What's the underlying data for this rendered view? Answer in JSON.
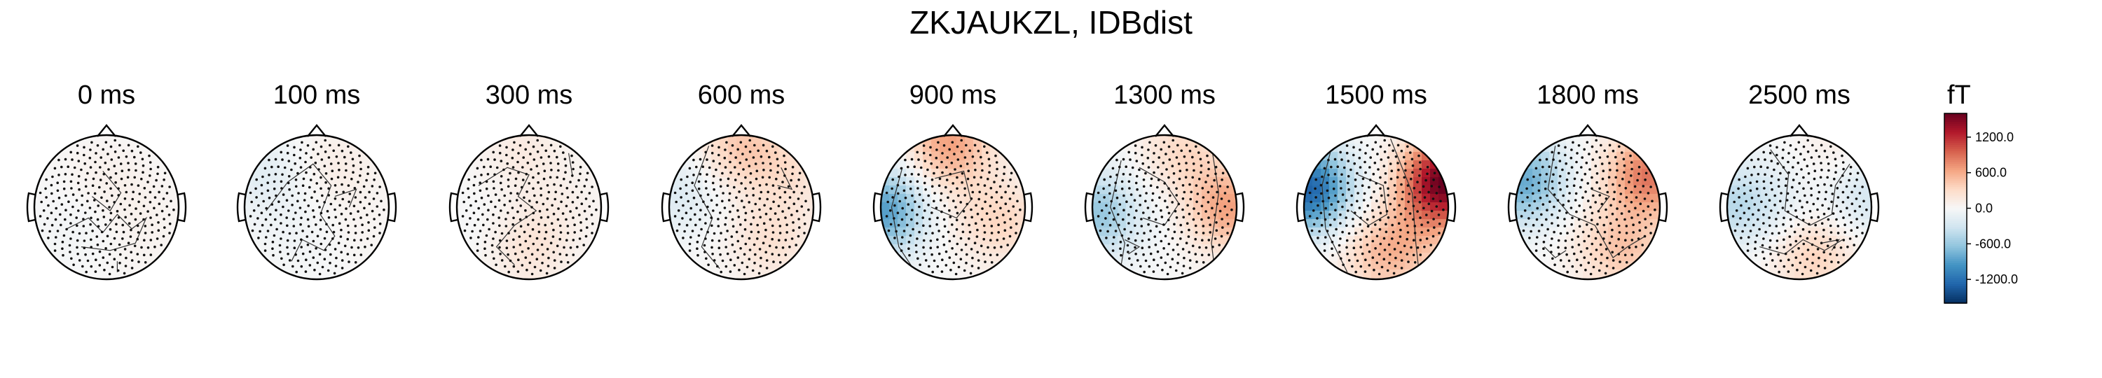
{
  "figure": {
    "title": "ZKJAUKZL, IDBdist"
  },
  "chart_data": {
    "type": "heatmap",
    "title": "ZKJAUKZL, IDBdist",
    "panels": [
      {
        "label": "0 ms",
        "sources": [
          [
            -0.05,
            -0.35,
            80
          ],
          [
            0.05,
            0.25,
            -50
          ],
          [
            0.45,
            0.1,
            60
          ],
          [
            -0.5,
            0.2,
            -40
          ],
          [
            0.3,
            0.55,
            40
          ]
        ],
        "contours": [
          [
            [
              -0.55,
              0.3
            ],
            [
              -0.25,
              0.15
            ],
            [
              -0.05,
              0.35
            ],
            [
              0.15,
              0.1
            ],
            [
              0.35,
              0.3
            ],
            [
              0.55,
              0.15
            ],
            [
              0.4,
              0.5
            ],
            [
              0.05,
              0.6
            ],
            [
              -0.35,
              0.55
            ]
          ],
          [
            [
              -0.05,
              -0.5
            ],
            [
              0.2,
              -0.2
            ],
            [
              0.05,
              0.05
            ],
            [
              -0.2,
              -0.15
            ]
          ],
          [
            [
              0.15,
              0.75
            ],
            [
              0.15,
              0.9
            ]
          ]
        ]
      },
      {
        "label": "100 ms",
        "sources": [
          [
            -0.75,
            -0.45,
            -170
          ],
          [
            0.3,
            -0.6,
            110
          ],
          [
            0.5,
            0.3,
            40
          ],
          [
            -0.2,
            0.4,
            -60
          ]
        ],
        "contours": [
          [
            [
              -0.7,
              0.05
            ],
            [
              -0.4,
              -0.35
            ],
            [
              -0.05,
              -0.6
            ],
            [
              0.2,
              -0.3
            ],
            [
              0.05,
              0.1
            ],
            [
              0.25,
              0.4
            ],
            [
              0.1,
              0.6
            ],
            [
              -0.2,
              0.45
            ],
            [
              -0.35,
              0.75
            ]
          ],
          [
            [
              0.25,
              -0.15
            ],
            [
              0.55,
              -0.25
            ],
            [
              0.45,
              0.0
            ]
          ]
        ]
      },
      {
        "label": "300 ms",
        "sources": [
          [
            0.0,
            0.55,
            220
          ],
          [
            -0.1,
            -0.8,
            140
          ],
          [
            0.55,
            -0.1,
            60
          ],
          [
            -0.6,
            0.3,
            -40
          ]
        ],
        "contours": [
          [
            [
              -0.7,
              -0.3
            ],
            [
              -0.3,
              -0.55
            ],
            [
              0.0,
              -0.45
            ],
            [
              -0.15,
              -0.15
            ],
            [
              0.1,
              0.05
            ],
            [
              -0.2,
              0.25
            ],
            [
              -0.45,
              0.55
            ],
            [
              -0.2,
              0.8
            ]
          ],
          [
            [
              0.55,
              -0.75
            ],
            [
              0.6,
              -0.45
            ]
          ]
        ]
      },
      {
        "label": "600 ms",
        "sources": [
          [
            0.0,
            -0.85,
            420
          ],
          [
            0.4,
            0.45,
            240
          ],
          [
            -0.85,
            -0.2,
            -220
          ],
          [
            0.75,
            -0.5,
            200
          ]
        ],
        "contours": [
          [
            [
              -0.45,
              -0.85
            ],
            [
              -0.65,
              -0.3
            ],
            [
              -0.4,
              0.15
            ],
            [
              -0.55,
              0.55
            ],
            [
              -0.3,
              0.85
            ]
          ],
          [
            [
              0.55,
              -0.55
            ],
            [
              0.7,
              -0.25
            ],
            [
              0.5,
              -0.3
            ]
          ]
        ]
      },
      {
        "label": "900 ms",
        "sources": [
          [
            -0.05,
            -0.9,
            650
          ],
          [
            -0.95,
            0.05,
            -900
          ],
          [
            0.7,
            0.2,
            320
          ],
          [
            0.0,
            0.0,
            80
          ]
        ],
        "contours": [
          [
            [
              -0.7,
              -0.55
            ],
            [
              -0.85,
              0.0
            ],
            [
              -0.75,
              0.55
            ],
            [
              -0.55,
              0.85
            ]
          ],
          [
            [
              -0.25,
              -0.4
            ],
            [
              0.15,
              -0.5
            ],
            [
              0.25,
              -0.1
            ],
            [
              0.05,
              0.15
            ],
            [
              -0.3,
              0.0
            ]
          ]
        ]
      },
      {
        "label": "1300 ms",
        "sources": [
          [
            0.9,
            0.0,
            650
          ],
          [
            -0.95,
            0.1,
            -620
          ],
          [
            0.25,
            -0.8,
            300
          ],
          [
            -0.2,
            0.1,
            -20
          ]
        ],
        "contours": [
          [
            [
              -0.6,
              -0.65
            ],
            [
              -0.75,
              0.0
            ],
            [
              -0.55,
              0.5
            ],
            [
              -0.6,
              0.8
            ]
          ],
          [
            [
              -0.35,
              -0.55
            ],
            [
              0.0,
              -0.35
            ],
            [
              0.2,
              -0.05
            ],
            [
              0.0,
              0.25
            ],
            [
              -0.3,
              0.15
            ]
          ],
          [
            [
              -0.55,
              0.45
            ],
            [
              -0.35,
              0.55
            ],
            [
              -0.5,
              0.65
            ]
          ],
          [
            [
              0.65,
              -0.85
            ],
            [
              0.75,
              -0.2
            ],
            [
              0.65,
              0.5
            ],
            [
              0.7,
              0.9
            ]
          ]
        ]
      },
      {
        "label": "1500 ms",
        "sources": [
          [
            0.95,
            -0.35,
            1600
          ],
          [
            -0.95,
            -0.25,
            -1300
          ],
          [
            0.05,
            0.65,
            380
          ],
          [
            0.5,
            0.5,
            280
          ]
        ],
        "contours": [
          [
            [
              -0.6,
              -0.9
            ],
            [
              -0.75,
              -0.3
            ],
            [
              -0.7,
              0.3
            ],
            [
              -0.4,
              0.9
            ]
          ],
          [
            [
              -0.25,
              -0.45
            ],
            [
              0.1,
              -0.3
            ],
            [
              0.15,
              0.1
            ],
            [
              -0.1,
              0.25
            ],
            [
              -0.35,
              0.05
            ]
          ],
          [
            [
              0.2,
              -0.95
            ],
            [
              0.5,
              -0.2
            ],
            [
              0.55,
              0.5
            ],
            [
              0.6,
              0.95
            ]
          ]
        ]
      },
      {
        "label": "1800 ms",
        "sources": [
          [
            0.85,
            -0.45,
            850
          ],
          [
            -0.9,
            -0.35,
            -820
          ],
          [
            0.5,
            0.6,
            420
          ],
          [
            0.0,
            0.3,
            60
          ]
        ],
        "contours": [
          [
            [
              -0.45,
              -0.85
            ],
            [
              -0.55,
              -0.25
            ],
            [
              -0.25,
              0.1
            ],
            [
              0.1,
              0.25
            ],
            [
              0.35,
              0.7
            ],
            [
              0.55,
              0.55
            ],
            [
              0.8,
              0.4
            ]
          ],
          [
            [
              -0.6,
              0.55
            ],
            [
              -0.45,
              0.7
            ],
            [
              -0.3,
              0.6
            ]
          ],
          [
            [
              0.05,
              -0.25
            ],
            [
              0.3,
              -0.15
            ],
            [
              0.15,
              0.05
            ]
          ]
        ]
      },
      {
        "label": "2500 ms",
        "sources": [
          [
            -0.9,
            -0.05,
            -420
          ],
          [
            0.9,
            -0.2,
            -320
          ],
          [
            0.2,
            0.65,
            380
          ],
          [
            -0.2,
            0.0,
            -120
          ],
          [
            0.6,
            -0.7,
            160
          ]
        ],
        "contours": [
          [
            [
              -0.4,
              -0.8
            ],
            [
              -0.15,
              -0.45
            ],
            [
              -0.2,
              0.05
            ],
            [
              0.15,
              0.25
            ],
            [
              0.45,
              0.1
            ],
            [
              0.5,
              -0.3
            ],
            [
              0.7,
              -0.6
            ]
          ],
          [
            [
              -0.55,
              0.55
            ],
            [
              -0.2,
              0.65
            ],
            [
              0.05,
              0.45
            ],
            [
              0.35,
              0.6
            ],
            [
              0.6,
              0.45
            ]
          ],
          [
            [
              0.3,
              0.5
            ],
            [
              0.55,
              0.45
            ],
            [
              0.45,
              0.6
            ]
          ]
        ]
      }
    ],
    "colorbar": {
      "unit": "fT",
      "range": [
        -1600,
        1600
      ],
      "ticks": [
        1200,
        600,
        0,
        -600,
        -1200
      ],
      "tick_labels": [
        "1200.0",
        "600.0",
        "0.0",
        "-600.0",
        "-1200.0"
      ],
      "colormap": [
        "#053061",
        "#2166ac",
        "#4393c3",
        "#92c5de",
        "#d1e5f0",
        "#f7f7f7",
        "#fddbc7",
        "#f4a582",
        "#d6604d",
        "#b2182b",
        "#67001f"
      ]
    }
  }
}
